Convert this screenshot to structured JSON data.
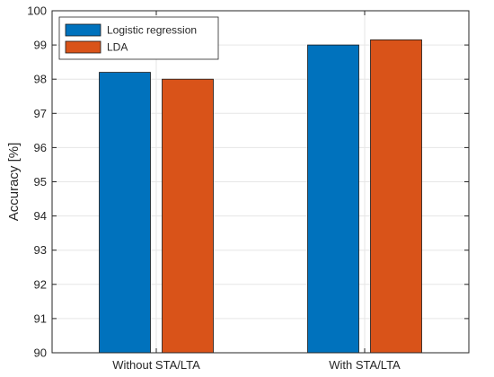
{
  "chart_data": {
    "type": "bar",
    "categories": [
      "Without STA/LTA",
      "With STA/LTA"
    ],
    "series": [
      {
        "name": "Logistic regression",
        "color": "#0072BD",
        "values": [
          98.2,
          99.0
        ]
      },
      {
        "name": "LDA",
        "color": "#D95319",
        "values": [
          98.0,
          99.15
        ]
      }
    ],
    "xlabel": "",
    "ylabel": "Accuracy [%]",
    "ylim": [
      90,
      100
    ],
    "yticks": [
      90,
      91,
      92,
      93,
      94,
      95,
      96,
      97,
      98,
      99,
      100
    ],
    "grid": true,
    "legend": "top-left"
  }
}
